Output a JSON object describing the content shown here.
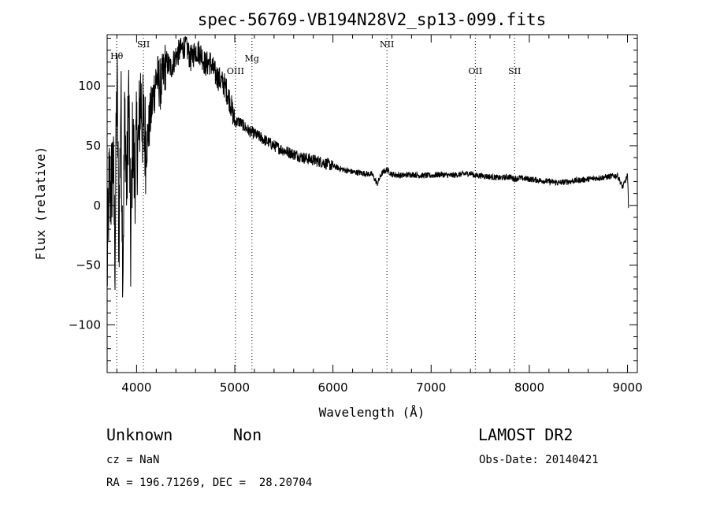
{
  "chart_data": {
    "type": "line",
    "title": "spec-56769-VB194N28V2_sp13-099.fits",
    "xlabel": "Wavelength (Å)",
    "ylabel": "Flux (relative)",
    "xlim": [
      3700,
      9100
    ],
    "ylim": [
      -140,
      143
    ],
    "xticks": [
      4000,
      5000,
      6000,
      7000,
      8000,
      9000
    ],
    "yticks": [
      -100,
      -50,
      0,
      50,
      100
    ],
    "grid": false,
    "line_color": "#000000",
    "series": [
      {
        "x": [
          3700,
          3720,
          3740,
          3760,
          3780,
          3800,
          3820,
          3840,
          3860,
          3880,
          3900,
          3920,
          3940,
          3960,
          3980,
          4000,
          4020,
          4040,
          4060,
          4080,
          4100,
          4150,
          4200,
          4250,
          4300,
          4350,
          4400,
          4450,
          4500,
          4550,
          4600,
          4650,
          4700,
          4750,
          4800,
          4850,
          4900,
          4950,
          5000,
          5050,
          5100,
          5150,
          5200,
          5300,
          5400,
          5500,
          5600,
          5700,
          5800,
          5900,
          6000,
          6100,
          6200,
          6300,
          6400,
          6450,
          6500,
          6550,
          6600,
          6700,
          6800,
          6900,
          7000,
          7100,
          7200,
          7300,
          7400,
          7450,
          7500,
          7600,
          7700,
          7800,
          7850,
          7900,
          8000,
          8100,
          8200,
          8300,
          8400,
          8500,
          8600,
          8700,
          8800,
          8900,
          8950,
          9000,
          9010
        ],
        "y": [
          -60,
          20,
          10,
          40,
          -40,
          110,
          -30,
          90,
          -50,
          80,
          10,
          100,
          -40,
          60,
          20,
          55,
          50,
          95,
          70,
          60,
          50,
          80,
          108,
          100,
          120,
          115,
          125,
          130,
          135,
          122,
          130,
          128,
          118,
          120,
          110,
          105,
          100,
          88,
          70,
          70,
          66,
          62,
          60,
          55,
          50,
          46,
          43,
          40,
          38,
          36,
          33,
          30,
          28,
          27,
          26,
          18,
          27,
          30,
          26,
          25,
          26,
          25,
          25,
          26,
          25,
          26,
          27,
          25,
          25,
          24,
          23,
          24,
          22,
          23,
          22,
          21,
          20,
          19,
          20,
          21,
          22,
          23,
          24,
          25,
          15,
          25,
          0
        ]
      }
    ],
    "line_markers": [
      {
        "label": "Hθ",
        "x": 3798
      },
      {
        "label": "SII",
        "x": 4070
      },
      {
        "label": "OIII",
        "x": 5007
      },
      {
        "label": "Mg",
        "x": 5175
      },
      {
        "label": "NII",
        "x": 6550
      },
      {
        "label": "OII",
        "x": 7450
      },
      {
        "label": "SII",
        "x": 7850
      }
    ]
  },
  "info": {
    "object_class": "Unknown",
    "subclass": "Non",
    "survey": "LAMOST DR2",
    "cz": "cz = NaN",
    "obs_date": "Obs-Date: 20140421",
    "coords": "RA = 196.71269, DEC =  28.20704"
  }
}
